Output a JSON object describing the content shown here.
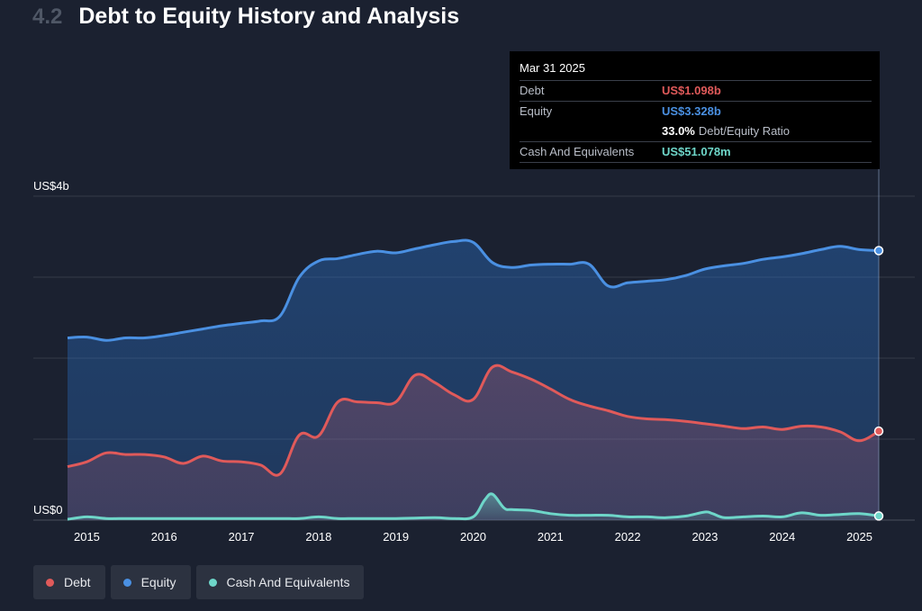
{
  "header": {
    "section_number": "4.2",
    "title": "Debt to Equity History and Analysis"
  },
  "tooltip": {
    "date": "Mar 31 2025",
    "debt_label": "Debt",
    "debt_value": "US$1.098b",
    "equity_label": "Equity",
    "equity_value": "US$3.328b",
    "ratio_value": "33.0%",
    "ratio_label": "Debt/Equity Ratio",
    "cash_label": "Cash And Equivalents",
    "cash_value": "US$51.078m"
  },
  "legend": [
    {
      "label": "Debt",
      "color": "#e05a5a"
    },
    {
      "label": "Equity",
      "color": "#4a90e2"
    },
    {
      "label": "Cash And Equivalents",
      "color": "#6ed6c9"
    }
  ],
  "chart_data": {
    "type": "area",
    "y_unit": "US$ billions",
    "ylim": [
      0,
      4
    ],
    "y_tick_labels": [
      {
        "value": 0,
        "label": "US$0"
      },
      {
        "value": 4,
        "label": "US$4b"
      }
    ],
    "x_tick_labels": [
      "2015",
      "2016",
      "2017",
      "2018",
      "2019",
      "2020",
      "2021",
      "2022",
      "2023",
      "2024",
      "2025"
    ],
    "xlim": [
      2014.75,
      2025.25
    ],
    "grid": true,
    "colors": {
      "Debt": "#e05a5a",
      "Equity": "#4a90e2",
      "Cash And Equivalents": "#6ed6c9"
    },
    "series": [
      {
        "name": "Equity",
        "points": [
          [
            2014.75,
            2.25
          ],
          [
            2015.0,
            2.26
          ],
          [
            2015.25,
            2.22
          ],
          [
            2015.5,
            2.25
          ],
          [
            2015.75,
            2.25
          ],
          [
            2016.0,
            2.28
          ],
          [
            2016.25,
            2.32
          ],
          [
            2016.5,
            2.36
          ],
          [
            2016.75,
            2.4
          ],
          [
            2017.0,
            2.43
          ],
          [
            2017.25,
            2.46
          ],
          [
            2017.5,
            2.52
          ],
          [
            2017.75,
            3.0
          ],
          [
            2018.0,
            3.2
          ],
          [
            2018.25,
            3.23
          ],
          [
            2018.5,
            3.28
          ],
          [
            2018.75,
            3.32
          ],
          [
            2019.0,
            3.3
          ],
          [
            2019.25,
            3.35
          ],
          [
            2019.5,
            3.4
          ],
          [
            2019.75,
            3.44
          ],
          [
            2020.0,
            3.43
          ],
          [
            2020.25,
            3.18
          ],
          [
            2020.5,
            3.12
          ],
          [
            2020.75,
            3.15
          ],
          [
            2021.0,
            3.16
          ],
          [
            2021.25,
            3.16
          ],
          [
            2021.5,
            3.16
          ],
          [
            2021.75,
            2.89
          ],
          [
            2022.0,
            2.93
          ],
          [
            2022.25,
            2.95
          ],
          [
            2022.5,
            2.97
          ],
          [
            2022.75,
            3.02
          ],
          [
            2023.0,
            3.1
          ],
          [
            2023.25,
            3.14
          ],
          [
            2023.5,
            3.17
          ],
          [
            2023.75,
            3.22
          ],
          [
            2024.0,
            3.25
          ],
          [
            2024.25,
            3.29
          ],
          [
            2024.5,
            3.34
          ],
          [
            2024.75,
            3.38
          ],
          [
            2025.0,
            3.34
          ],
          [
            2025.25,
            3.328
          ]
        ]
      },
      {
        "name": "Debt",
        "points": [
          [
            2014.75,
            0.66
          ],
          [
            2015.0,
            0.72
          ],
          [
            2015.25,
            0.83
          ],
          [
            2015.5,
            0.81
          ],
          [
            2015.75,
            0.81
          ],
          [
            2016.0,
            0.78
          ],
          [
            2016.25,
            0.7
          ],
          [
            2016.5,
            0.79
          ],
          [
            2016.75,
            0.73
          ],
          [
            2017.0,
            0.72
          ],
          [
            2017.25,
            0.68
          ],
          [
            2017.5,
            0.57
          ],
          [
            2017.75,
            1.05
          ],
          [
            2018.0,
            1.04
          ],
          [
            2018.25,
            1.46
          ],
          [
            2018.5,
            1.46
          ],
          [
            2018.75,
            1.45
          ],
          [
            2019.0,
            1.46
          ],
          [
            2019.25,
            1.79
          ],
          [
            2019.5,
            1.7
          ],
          [
            2019.75,
            1.55
          ],
          [
            2020.0,
            1.49
          ],
          [
            2020.25,
            1.89
          ],
          [
            2020.5,
            1.83
          ],
          [
            2020.75,
            1.74
          ],
          [
            2021.0,
            1.62
          ],
          [
            2021.25,
            1.49
          ],
          [
            2021.5,
            1.41
          ],
          [
            2021.75,
            1.35
          ],
          [
            2022.0,
            1.28
          ],
          [
            2022.25,
            1.25
          ],
          [
            2022.5,
            1.24
          ],
          [
            2022.75,
            1.22
          ],
          [
            2023.0,
            1.19
          ],
          [
            2023.25,
            1.16
          ],
          [
            2023.5,
            1.13
          ],
          [
            2023.75,
            1.15
          ],
          [
            2024.0,
            1.12
          ],
          [
            2024.25,
            1.16
          ],
          [
            2024.5,
            1.15
          ],
          [
            2024.75,
            1.09
          ],
          [
            2025.0,
            0.98
          ],
          [
            2025.25,
            1.098
          ]
        ]
      },
      {
        "name": "Cash And Equivalents",
        "points": [
          [
            2014.75,
            0.01
          ],
          [
            2015.0,
            0.04
          ],
          [
            2015.25,
            0.02
          ],
          [
            2015.5,
            0.02
          ],
          [
            2015.75,
            0.02
          ],
          [
            2016.0,
            0.02
          ],
          [
            2016.5,
            0.02
          ],
          [
            2017.0,
            0.02
          ],
          [
            2017.5,
            0.02
          ],
          [
            2017.75,
            0.02
          ],
          [
            2018.0,
            0.04
          ],
          [
            2018.25,
            0.02
          ],
          [
            2018.5,
            0.02
          ],
          [
            2019.0,
            0.02
          ],
          [
            2019.5,
            0.03
          ],
          [
            2019.75,
            0.02
          ],
          [
            2020.0,
            0.04
          ],
          [
            2020.15,
            0.25
          ],
          [
            2020.25,
            0.32
          ],
          [
            2020.4,
            0.15
          ],
          [
            2020.5,
            0.13
          ],
          [
            2020.75,
            0.12
          ],
          [
            2021.0,
            0.08
          ],
          [
            2021.25,
            0.06
          ],
          [
            2021.5,
            0.06
          ],
          [
            2021.75,
            0.06
          ],
          [
            2022.0,
            0.04
          ],
          [
            2022.25,
            0.04
          ],
          [
            2022.5,
            0.03
          ],
          [
            2022.75,
            0.05
          ],
          [
            2023.0,
            0.1
          ],
          [
            2023.1,
            0.08
          ],
          [
            2023.25,
            0.03
          ],
          [
            2023.5,
            0.04
          ],
          [
            2023.75,
            0.05
          ],
          [
            2024.0,
            0.04
          ],
          [
            2024.25,
            0.09
          ],
          [
            2024.5,
            0.06
          ],
          [
            2024.75,
            0.07
          ],
          [
            2025.0,
            0.08
          ],
          [
            2025.25,
            0.051
          ]
        ]
      }
    ]
  }
}
